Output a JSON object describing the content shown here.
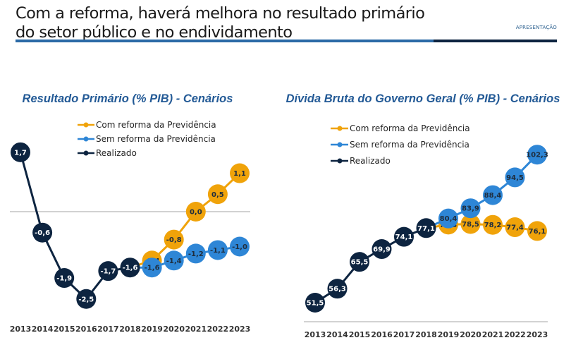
{
  "header": {
    "title_line1": "Com a reforma, haverá melhora no resultado primário",
    "title_line2": "do setor público e no endividamento",
    "section_label": "APRESENTAÇÃO"
  },
  "colors": {
    "com_reforma": "#f0a30a",
    "sem_reforma": "#2e86d6",
    "realizado": "#0d2440",
    "title_blue": "#235a96",
    "header_bar": "#2b6aa6",
    "header_bar_dark": "#0d2440"
  },
  "chart_data": [
    {
      "type": "line",
      "title": "Resultado Primário (% PIB) - Cenários",
      "xlabel": "",
      "ylabel": "",
      "categories": [
        "2013",
        "2014",
        "2015",
        "2016",
        "2017",
        "2018",
        "2019",
        "2020",
        "2021",
        "2022",
        "2023"
      ],
      "legend": [
        "Com reforma da Previdência",
        "Sem reforma da Previdência",
        "Realizado"
      ],
      "legend_position": "top-center",
      "zero_line": true,
      "series": [
        {
          "name": "Realizado",
          "key": "realizado",
          "values": [
            1.7,
            -0.6,
            -1.9,
            -2.5,
            -1.7,
            -1.6,
            null,
            null,
            null,
            null,
            null
          ],
          "labels": [
            "1,7",
            "-0,6",
            "-1,9",
            "-2,5",
            "-1,7",
            "-1,6",
            "",
            "",
            "",
            "",
            ""
          ]
        },
        {
          "name": "Com reforma da Previdência",
          "key": "com_reforma",
          "values": [
            null,
            null,
            null,
            null,
            null,
            -1.6,
            -1.4,
            -0.8,
            0.0,
            0.5,
            1.1
          ],
          "labels": [
            "",
            "",
            "",
            "",
            "",
            "",
            "-1,4",
            "-0,8",
            "0,0",
            "0,5",
            "1,1"
          ]
        },
        {
          "name": "Sem reforma da Previdência",
          "key": "sem_reforma",
          "values": [
            null,
            null,
            null,
            null,
            null,
            -1.6,
            -1.6,
            -1.4,
            -1.2,
            -1.1,
            -1.0
          ],
          "labels": [
            "",
            "",
            "",
            "",
            "",
            "",
            "-1,6",
            "-1,4",
            "-1,2",
            "-1,1",
            "-1,0"
          ]
        }
      ]
    },
    {
      "type": "line",
      "title": "Dívida Bruta do Governo Geral (% PIB) - Cenários",
      "xlabel": "",
      "ylabel": "",
      "categories": [
        "2013",
        "2014",
        "2015",
        "2016",
        "2017",
        "2018",
        "2019",
        "2020",
        "2021",
        "2022",
        "2023"
      ],
      "legend": [
        "Com reforma da Previdência",
        "Sem reforma da Previdência",
        "Realizado"
      ],
      "legend_position": "top-left",
      "zero_line": false,
      "series": [
        {
          "name": "Realizado",
          "key": "realizado",
          "values": [
            51.5,
            56.3,
            65.5,
            69.9,
            74.1,
            77.1,
            null,
            null,
            null,
            null,
            null
          ],
          "labels": [
            "51,5",
            "56,3",
            "65,5",
            "69,9",
            "74,1",
            "77,1",
            "",
            "",
            "",
            "",
            ""
          ]
        },
        {
          "name": "Com reforma da Previdência",
          "key": "com_reforma",
          "values": [
            null,
            null,
            null,
            null,
            null,
            77.1,
            78.3,
            78.5,
            78.2,
            77.4,
            76.1
          ],
          "labels": [
            "",
            "",
            "",
            "",
            "",
            "",
            "78,3",
            "78,5",
            "78,2",
            "77,4",
            "76,1"
          ]
        },
        {
          "name": "Sem reforma da Previdência",
          "key": "sem_reforma",
          "values": [
            null,
            null,
            null,
            null,
            null,
            77.1,
            80.4,
            83.9,
            88.4,
            94.5,
            102.3
          ],
          "labels": [
            "",
            "",
            "",
            "",
            "",
            "",
            "80,4",
            "83,9",
            "88,4",
            "94,5",
            "102,3"
          ]
        }
      ]
    }
  ]
}
